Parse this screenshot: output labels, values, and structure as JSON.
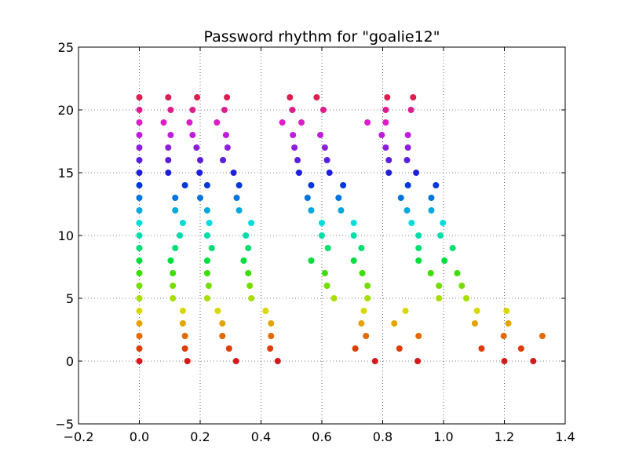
{
  "chart_data": {
    "type": "scatter",
    "title": "Password rhythm for \"goalie12\"",
    "xlabel": "",
    "ylabel": "",
    "xlim": [
      -0.2,
      1.4
    ],
    "ylim": [
      -5,
      25
    ],
    "xticks": [
      -0.2,
      0.0,
      0.2,
      0.4,
      0.6,
      0.8,
      1.0,
      1.2,
      1.4
    ],
    "xtick_labels": [
      "−0.2",
      "0.0",
      "0.2",
      "0.4",
      "0.6",
      "0.8",
      "1.0",
      "1.2",
      "1.4"
    ],
    "yticks": [
      -5,
      0,
      5,
      10,
      15,
      20,
      25
    ],
    "ytick_labels": [
      "−5",
      "0",
      "5",
      "10",
      "15",
      "20",
      "25"
    ],
    "grid": true,
    "legend": "none",
    "color_by": "y (rainbow: red at 0 to magenta-red at 21)",
    "series": [
      {
        "name": "y=0",
        "x": [
          0.0,
          0.158,
          0.318,
          0.455,
          0.775,
          0.915,
          1.2,
          1.295
        ]
      },
      {
        "name": "y=1",
        "x": [
          0.0,
          0.15,
          0.295,
          0.43,
          0.71,
          0.855,
          1.125,
          1.255
        ]
      },
      {
        "name": "y=2",
        "x": [
          0.0,
          0.15,
          0.273,
          0.433,
          0.745,
          0.918,
          1.198,
          1.325
        ]
      },
      {
        "name": "y=3",
        "x": [
          0.0,
          0.143,
          0.273,
          0.433,
          0.73,
          0.838,
          1.103,
          1.213
        ]
      },
      {
        "name": "y=4",
        "x": [
          0.0,
          0.143,
          0.258,
          0.415,
          0.738,
          0.875,
          1.11,
          1.207
        ]
      },
      {
        "name": "y=5",
        "x": [
          0.0,
          0.11,
          0.223,
          0.368,
          0.64,
          0.75,
          0.985,
          1.075
        ]
      },
      {
        "name": "y=6",
        "x": [
          0.0,
          0.11,
          0.228,
          0.363,
          0.617,
          0.75,
          0.985,
          1.06
        ]
      },
      {
        "name": "y=7",
        "x": [
          0.0,
          0.11,
          0.223,
          0.358,
          0.61,
          0.733,
          0.958,
          1.045
        ]
      },
      {
        "name": "y=8",
        "x": [
          0.0,
          0.103,
          0.223,
          0.343,
          0.565,
          0.705,
          0.918,
          1.003
        ]
      },
      {
        "name": "y=9",
        "x": [
          0.0,
          0.118,
          0.238,
          0.358,
          0.62,
          0.73,
          0.918,
          1.03
        ]
      },
      {
        "name": "y=10",
        "x": [
          0.0,
          0.133,
          0.223,
          0.35,
          0.6,
          0.705,
          0.918,
          0.99
        ]
      },
      {
        "name": "y=11",
        "x": [
          0.0,
          0.143,
          0.23,
          0.368,
          0.6,
          0.705,
          0.895,
          0.998
        ]
      },
      {
        "name": "y=12",
        "x": [
          0.0,
          0.118,
          0.223,
          0.328,
          0.565,
          0.663,
          0.88,
          0.96
        ]
      },
      {
        "name": "y=13",
        "x": [
          0.0,
          0.118,
          0.2,
          0.32,
          0.553,
          0.655,
          0.86,
          0.96
        ]
      },
      {
        "name": "y=14",
        "x": [
          0.0,
          0.15,
          0.223,
          0.328,
          0.565,
          0.67,
          0.883,
          0.975
        ]
      },
      {
        "name": "y=15",
        "x": [
          0.0,
          0.095,
          0.198,
          0.31,
          0.525,
          0.625,
          0.82,
          0.91
        ]
      },
      {
        "name": "y=16",
        "x": [
          0.0,
          0.095,
          0.275,
          0.2,
          0.52,
          0.617,
          0.82,
          0.88
        ]
      },
      {
        "name": "y=17",
        "x": [
          0.0,
          0.095,
          0.188,
          0.29,
          0.51,
          0.61,
          0.81,
          0.883
        ]
      },
      {
        "name": "y=18",
        "x": [
          0.0,
          0.103,
          0.175,
          0.285,
          0.505,
          0.595,
          0.797,
          0.883
        ]
      },
      {
        "name": "y=19",
        "x": [
          0.0,
          0.08,
          0.165,
          0.255,
          0.47,
          0.533,
          0.81,
          0.75
        ]
      },
      {
        "name": "y=20",
        "x": [
          0.0,
          0.103,
          0.175,
          0.28,
          0.503,
          0.605,
          0.81,
          0.893
        ]
      },
      {
        "name": "y=21",
        "x": [
          0.0,
          0.095,
          0.19,
          0.288,
          0.495,
          0.583,
          0.815,
          0.9
        ]
      }
    ],
    "colors": [
      "#d7191c",
      "#dd3d00",
      "#e06a00",
      "#e3a300",
      "#d8d800",
      "#a8dd00",
      "#74dd00",
      "#3cdd00",
      "#00dd3c",
      "#00dd74",
      "#00dda8",
      "#00dcdc",
      "#00a8dc",
      "#0074dc",
      "#0038dc",
      "#1e1edc",
      "#5a1edc",
      "#8c1edc",
      "#be1edc",
      "#dc1ec8",
      "#dc1e8c",
      "#dc1e50"
    ]
  }
}
